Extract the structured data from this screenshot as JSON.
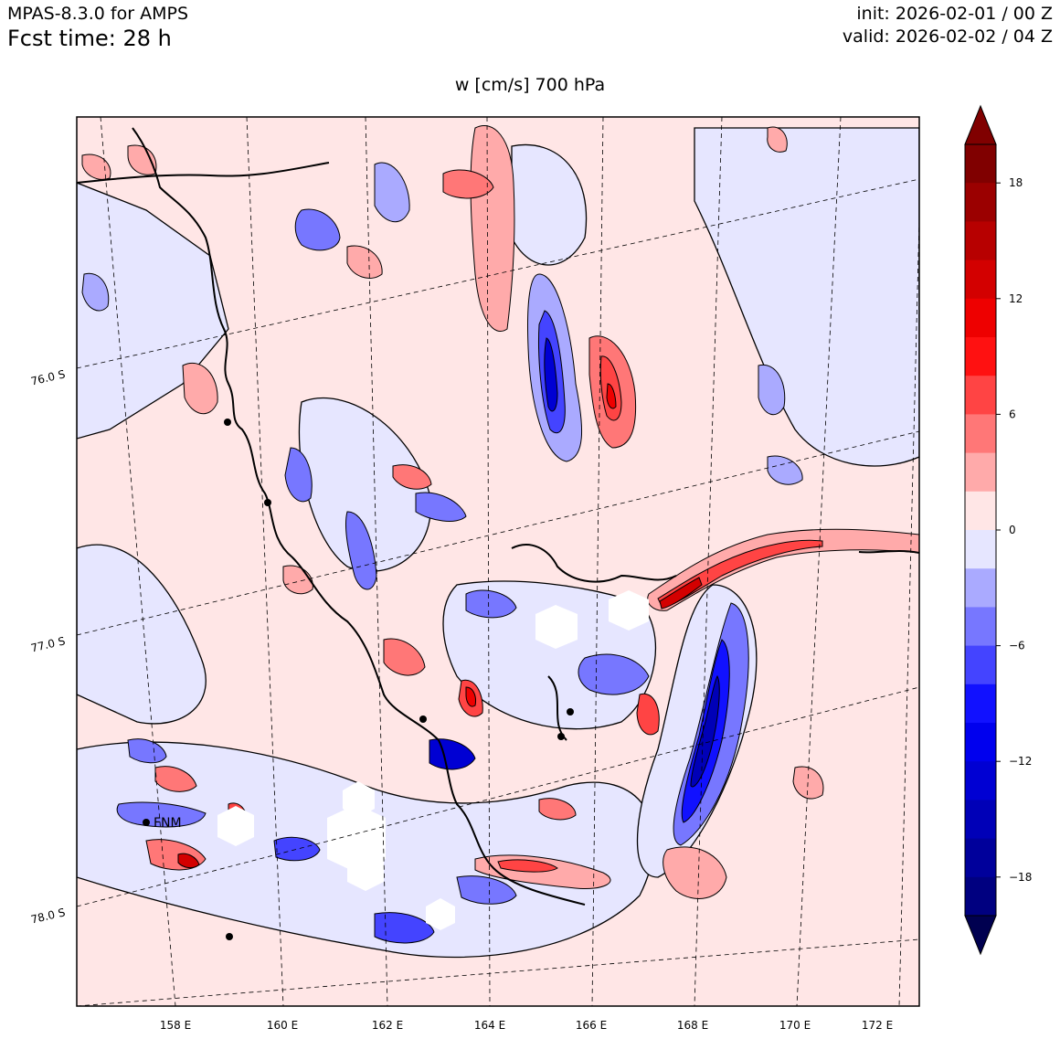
{
  "header": {
    "model": "MPAS-8.3.0 for AMPS",
    "fcst_time": "Fcst time:   28 h",
    "init": "init: 2026-02-01 / 00 Z",
    "valid": "valid: 2026-02-02 / 04 Z"
  },
  "plot_title": "w [cm/s]    700 hPa",
  "map": {
    "lon_labels": [
      "158 E",
      "160 E",
      "162 E",
      "164 E",
      "166 E",
      "168 E",
      "170 E",
      "172 E"
    ],
    "lat_labels": [
      "76.0 S",
      "77.0 S",
      "78.0 S"
    ],
    "station_label": "FNM"
  },
  "colorbar": {
    "tick_labels": [
      "18",
      "12",
      "6",
      "0",
      "−6",
      "−12",
      "−18"
    ],
    "levels": [
      20,
      18,
      16,
      14,
      12,
      10,
      8,
      6,
      4,
      2,
      0,
      -2,
      -4,
      -6,
      -8,
      -10,
      -12,
      -14,
      -16,
      -18,
      -20
    ],
    "colors": [
      "#800000",
      "#9b0000",
      "#b70000",
      "#d30000",
      "#ee0000",
      "#ff1111",
      "#ff4444",
      "#ff7777",
      "#ffaaaa",
      "#ffe6e6",
      "#e6e6ff",
      "#aaaaff",
      "#7777ff",
      "#4444ff",
      "#1111ff",
      "#0000ee",
      "#0000d3",
      "#0000b7",
      "#00009b",
      "#000080"
    ],
    "over_color": "#800000",
    "under_color": "#000050"
  }
}
